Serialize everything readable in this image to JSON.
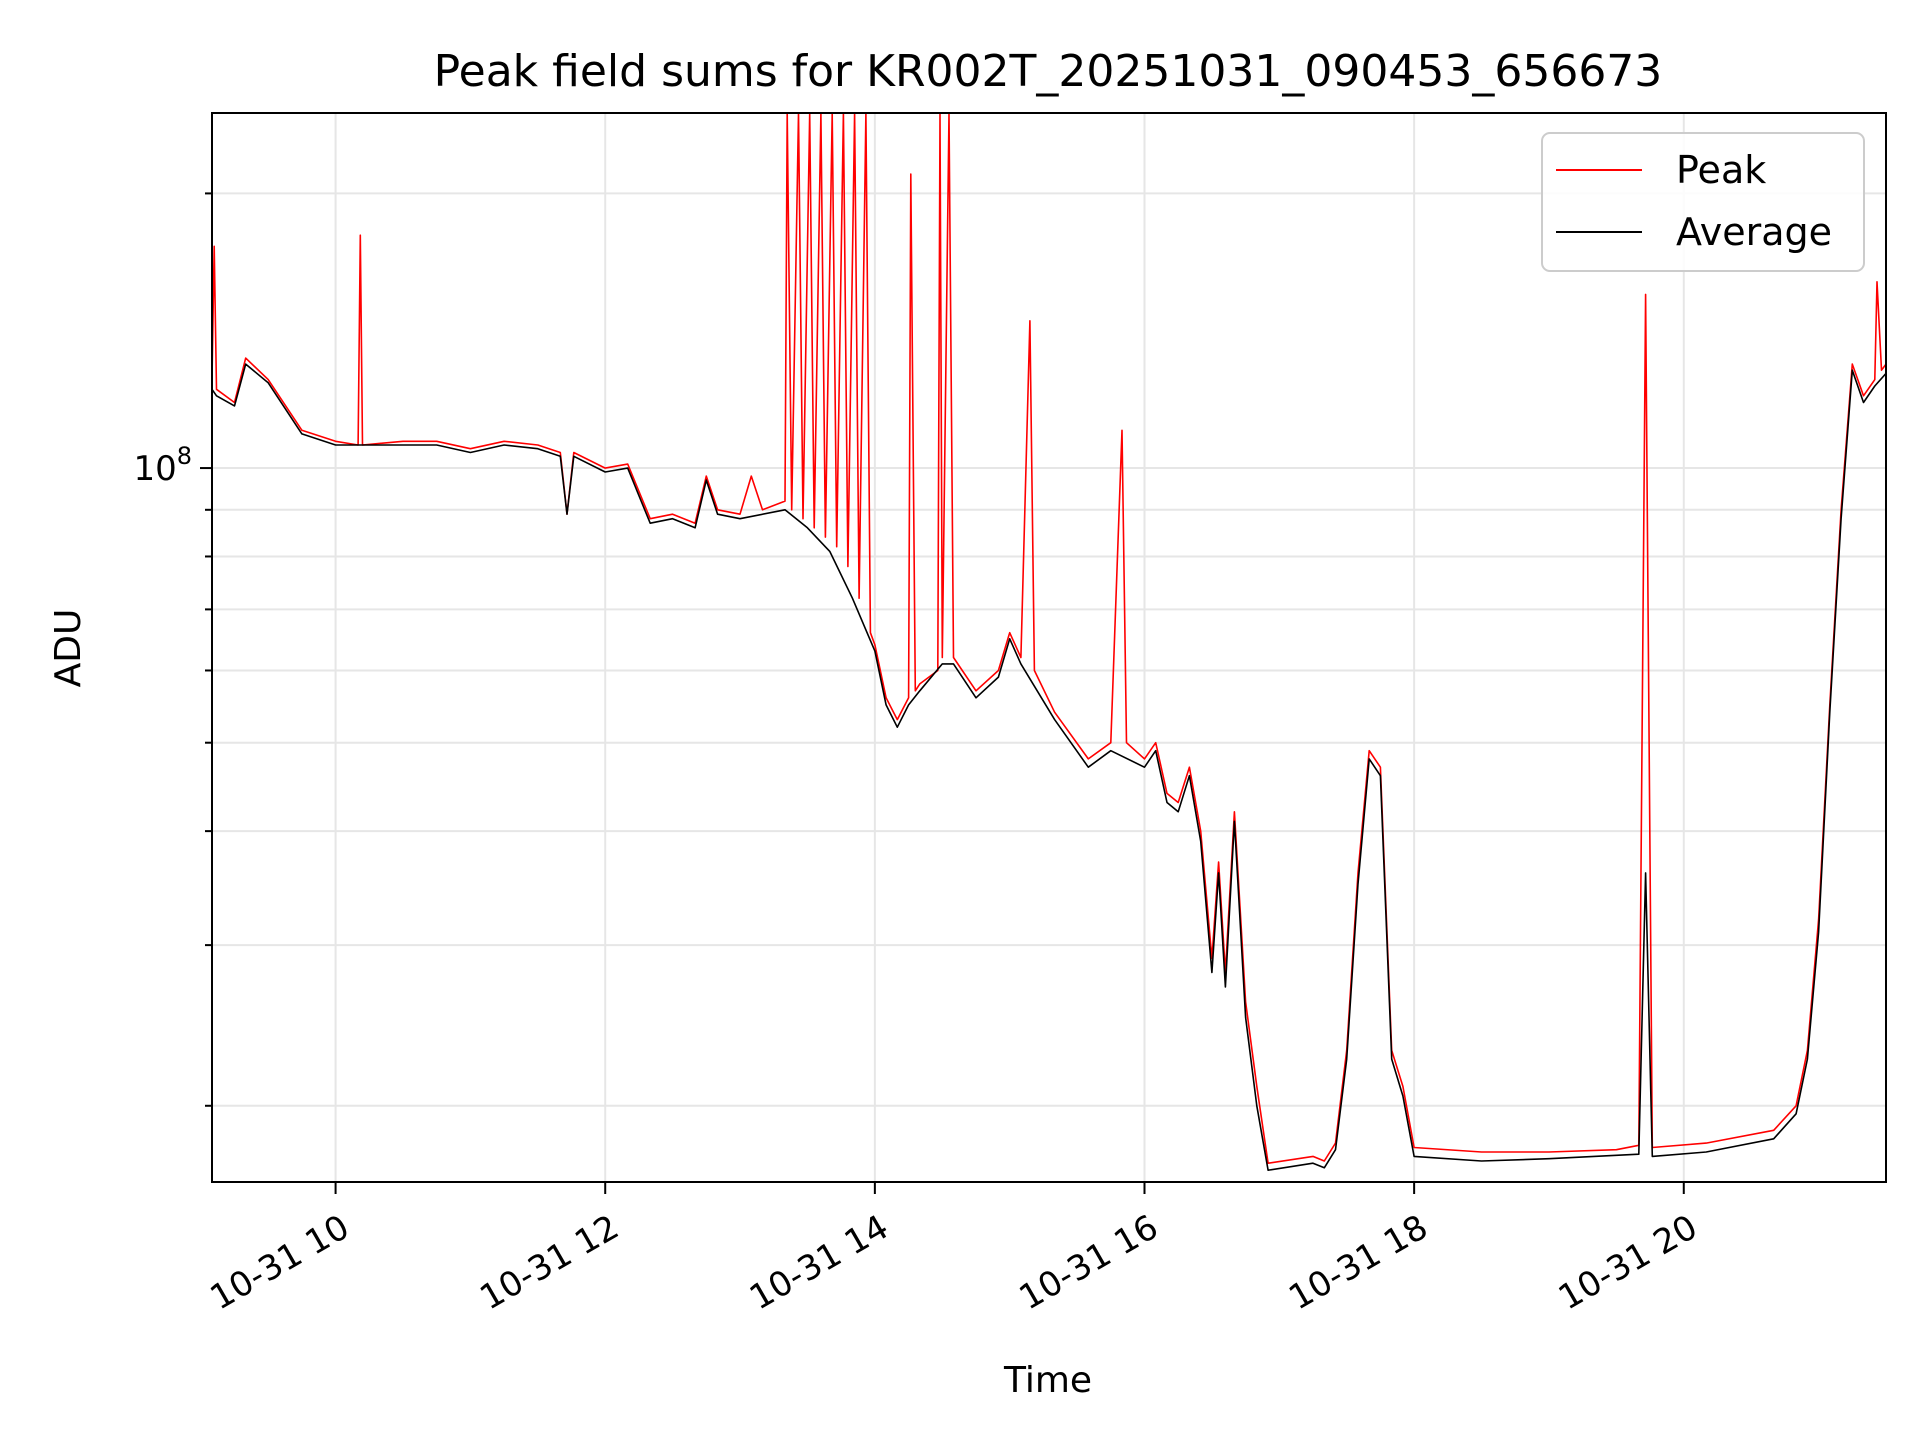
{
  "chart_data": {
    "type": "line",
    "title": "Peak field sums for KR002T_20251031_090453_656673",
    "xlabel": "Time",
    "ylabel": "ADU",
    "x_scale": "time",
    "y_scale": "log",
    "xlim": [
      "2025-10-31 09:05",
      "2025-10-31 21:30"
    ],
    "ylim": [
      16500000,
      245000000
    ],
    "grid": true,
    "legend_position": "upper right",
    "x_ticks": [
      {
        "time": "2025-10-31 10:00",
        "label": "10-31 10"
      },
      {
        "time": "2025-10-31 12:00",
        "label": "10-31 12"
      },
      {
        "time": "2025-10-31 14:00",
        "label": "10-31 14"
      },
      {
        "time": "2025-10-31 16:00",
        "label": "10-31 16"
      },
      {
        "time": "2025-10-31 18:00",
        "label": "10-31 18"
      },
      {
        "time": "2025-10-31 20:00",
        "label": "10-31 20"
      }
    ],
    "y_major_ticks": [
      {
        "value": 100000000,
        "base": "10",
        "exp": "8"
      }
    ],
    "y_minor_ticks": [
      20000000,
      30000000,
      40000000,
      50000000,
      60000000,
      70000000,
      80000000,
      90000000,
      200000000
    ],
    "series": [
      {
        "name": "Peak",
        "color": "#ff0000",
        "points": [
          [
            "2025-10-31 09:05",
            125000000
          ],
          [
            "2025-10-31 09:06",
            175000000
          ],
          [
            "2025-10-31 09:07",
            122000000
          ],
          [
            "2025-10-31 09:15",
            118000000
          ],
          [
            "2025-10-31 09:20",
            132000000
          ],
          [
            "2025-10-31 09:30",
            125000000
          ],
          [
            "2025-10-31 09:45",
            110000000
          ],
          [
            "2025-10-31 10:00",
            107000000
          ],
          [
            "2025-10-31 10:10",
            106000000
          ],
          [
            "2025-10-31 10:11",
            180000000
          ],
          [
            "2025-10-31 10:12",
            106000000
          ],
          [
            "2025-10-31 10:30",
            107000000
          ],
          [
            "2025-10-31 10:45",
            107000000
          ],
          [
            "2025-10-31 11:00",
            105000000
          ],
          [
            "2025-10-31 11:15",
            107000000
          ],
          [
            "2025-10-31 11:30",
            106000000
          ],
          [
            "2025-10-31 11:40",
            104000000
          ],
          [
            "2025-10-31 11:43",
            89000000
          ],
          [
            "2025-10-31 11:46",
            104000000
          ],
          [
            "2025-10-31 12:00",
            100000000
          ],
          [
            "2025-10-31 12:10",
            101000000
          ],
          [
            "2025-10-31 12:20",
            88000000
          ],
          [
            "2025-10-31 12:30",
            89000000
          ],
          [
            "2025-10-31 12:40",
            87000000
          ],
          [
            "2025-10-31 12:45",
            98000000
          ],
          [
            "2025-10-31 12:50",
            90000000
          ],
          [
            "2025-10-31 13:00",
            89000000
          ],
          [
            "2025-10-31 13:05",
            98000000
          ],
          [
            "2025-10-31 13:10",
            90000000
          ],
          [
            "2025-10-31 13:20",
            92000000
          ],
          [
            "2025-10-31 13:21",
            245000000
          ],
          [
            "2025-10-31 13:23",
            90000000
          ],
          [
            "2025-10-31 13:26",
            245000000
          ],
          [
            "2025-10-31 13:28",
            88000000
          ],
          [
            "2025-10-31 13:31",
            245000000
          ],
          [
            "2025-10-31 13:33",
            86000000
          ],
          [
            "2025-10-31 13:36",
            245000000
          ],
          [
            "2025-10-31 13:38",
            84000000
          ],
          [
            "2025-10-31 13:41",
            245000000
          ],
          [
            "2025-10-31 13:43",
            82000000
          ],
          [
            "2025-10-31 13:46",
            245000000
          ],
          [
            "2025-10-31 13:48",
            78000000
          ],
          [
            "2025-10-31 13:51",
            245000000
          ],
          [
            "2025-10-31 13:53",
            72000000
          ],
          [
            "2025-10-31 13:56",
            245000000
          ],
          [
            "2025-10-31 13:58",
            66000000
          ],
          [
            "2025-10-31 14:00",
            64000000
          ],
          [
            "2025-10-31 14:05",
            56000000
          ],
          [
            "2025-10-31 14:10",
            53000000
          ],
          [
            "2025-10-31 14:15",
            56000000
          ],
          [
            "2025-10-31 14:16",
            210000000
          ],
          [
            "2025-10-31 14:18",
            57000000
          ],
          [
            "2025-10-31 14:20",
            58000000
          ],
          [
            "2025-10-31 14:28",
            60000000
          ],
          [
            "2025-10-31 14:29",
            245000000
          ],
          [
            "2025-10-31 14:30",
            62000000
          ],
          [
            "2025-10-31 14:33",
            245000000
          ],
          [
            "2025-10-31 14:35",
            62000000
          ],
          [
            "2025-10-31 14:45",
            57000000
          ],
          [
            "2025-10-31 14:55",
            60000000
          ],
          [
            "2025-10-31 15:00",
            66000000
          ],
          [
            "2025-10-31 15:05",
            62000000
          ],
          [
            "2025-10-31 15:09",
            145000000
          ],
          [
            "2025-10-31 15:11",
            60000000
          ],
          [
            "2025-10-31 15:20",
            54000000
          ],
          [
            "2025-10-31 15:35",
            48000000
          ],
          [
            "2025-10-31 15:45",
            50000000
          ],
          [
            "2025-10-31 15:50",
            110000000
          ],
          [
            "2025-10-31 15:52",
            50000000
          ],
          [
            "2025-10-31 16:00",
            48000000
          ],
          [
            "2025-10-31 16:05",
            50000000
          ],
          [
            "2025-10-31 16:10",
            44000000
          ],
          [
            "2025-10-31 16:15",
            43000000
          ],
          [
            "2025-10-31 16:20",
            47000000
          ],
          [
            "2025-10-31 16:25",
            40000000
          ],
          [
            "2025-10-31 16:30",
            29000000
          ],
          [
            "2025-10-31 16:33",
            37000000
          ],
          [
            "2025-10-31 16:36",
            28000000
          ],
          [
            "2025-10-31 16:40",
            42000000
          ],
          [
            "2025-10-31 16:45",
            26000000
          ],
          [
            "2025-10-31 16:50",
            21000000
          ],
          [
            "2025-10-31 16:55",
            17300000
          ],
          [
            "2025-10-31 17:15",
            17600000
          ],
          [
            "2025-10-31 17:20",
            17400000
          ],
          [
            "2025-10-31 17:25",
            18200000
          ],
          [
            "2025-10-31 17:30",
            23000000
          ],
          [
            "2025-10-31 17:35",
            36000000
          ],
          [
            "2025-10-31 17:40",
            49000000
          ],
          [
            "2025-10-31 17:45",
            47000000
          ],
          [
            "2025-10-31 17:50",
            23000000
          ],
          [
            "2025-10-31 17:55",
            21000000
          ],
          [
            "2025-10-31 18:00",
            18000000
          ],
          [
            "2025-10-31 18:30",
            17800000
          ],
          [
            "2025-10-31 19:00",
            17800000
          ],
          [
            "2025-10-31 19:30",
            17900000
          ],
          [
            "2025-10-31 19:40",
            18100000
          ],
          [
            "2025-10-31 19:43",
            155000000
          ],
          [
            "2025-10-31 19:46",
            18000000
          ],
          [
            "2025-10-31 20:10",
            18200000
          ],
          [
            "2025-10-31 20:40",
            18800000
          ],
          [
            "2025-10-31 20:50",
            20000000
          ],
          [
            "2025-10-31 20:55",
            23000000
          ],
          [
            "2025-10-31 21:00",
            32000000
          ],
          [
            "2025-10-31 21:05",
            55000000
          ],
          [
            "2025-10-31 21:10",
            90000000
          ],
          [
            "2025-10-31 21:15",
            130000000
          ],
          [
            "2025-10-31 21:20",
            120000000
          ],
          [
            "2025-10-31 21:25",
            125000000
          ],
          [
            "2025-10-31 21:26",
            160000000
          ],
          [
            "2025-10-31 21:28",
            128000000
          ],
          [
            "2025-10-31 21:30",
            130000000
          ]
        ]
      },
      {
        "name": "Average",
        "color": "#000000",
        "points": [
          [
            "2025-10-31 09:05",
            122000000
          ],
          [
            "2025-10-31 09:07",
            120000000
          ],
          [
            "2025-10-31 09:15",
            117000000
          ],
          [
            "2025-10-31 09:20",
            130000000
          ],
          [
            "2025-10-31 09:30",
            124000000
          ],
          [
            "2025-10-31 09:45",
            109000000
          ],
          [
            "2025-10-31 10:00",
            106000000
          ],
          [
            "2025-10-31 10:30",
            106000000
          ],
          [
            "2025-10-31 10:45",
            106000000
          ],
          [
            "2025-10-31 11:00",
            104000000
          ],
          [
            "2025-10-31 11:15",
            106000000
          ],
          [
            "2025-10-31 11:30",
            105000000
          ],
          [
            "2025-10-31 11:40",
            103000000
          ],
          [
            "2025-10-31 11:43",
            89000000
          ],
          [
            "2025-10-31 11:46",
            103000000
          ],
          [
            "2025-10-31 12:00",
            99000000
          ],
          [
            "2025-10-31 12:10",
            100000000
          ],
          [
            "2025-10-31 12:20",
            87000000
          ],
          [
            "2025-10-31 12:30",
            88000000
          ],
          [
            "2025-10-31 12:40",
            86000000
          ],
          [
            "2025-10-31 12:45",
            97000000
          ],
          [
            "2025-10-31 12:50",
            89000000
          ],
          [
            "2025-10-31 13:00",
            88000000
          ],
          [
            "2025-10-31 13:20",
            90000000
          ],
          [
            "2025-10-31 13:30",
            86000000
          ],
          [
            "2025-10-31 13:40",
            81000000
          ],
          [
            "2025-10-31 13:50",
            72000000
          ],
          [
            "2025-10-31 14:00",
            63000000
          ],
          [
            "2025-10-31 14:05",
            55000000
          ],
          [
            "2025-10-31 14:10",
            52000000
          ],
          [
            "2025-10-31 14:15",
            55000000
          ],
          [
            "2025-10-31 14:20",
            57000000
          ],
          [
            "2025-10-31 14:30",
            61000000
          ],
          [
            "2025-10-31 14:35",
            61000000
          ],
          [
            "2025-10-31 14:45",
            56000000
          ],
          [
            "2025-10-31 14:55",
            59000000
          ],
          [
            "2025-10-31 15:00",
            65000000
          ],
          [
            "2025-10-31 15:05",
            61000000
          ],
          [
            "2025-10-31 15:20",
            53000000
          ],
          [
            "2025-10-31 15:35",
            47000000
          ],
          [
            "2025-10-31 15:45",
            49000000
          ],
          [
            "2025-10-31 16:00",
            47000000
          ],
          [
            "2025-10-31 16:05",
            49000000
          ],
          [
            "2025-10-31 16:10",
            43000000
          ],
          [
            "2025-10-31 16:15",
            42000000
          ],
          [
            "2025-10-31 16:20",
            46000000
          ],
          [
            "2025-10-31 16:25",
            39000000
          ],
          [
            "2025-10-31 16:30",
            28000000
          ],
          [
            "2025-10-31 16:33",
            36000000
          ],
          [
            "2025-10-31 16:36",
            27000000
          ],
          [
            "2025-10-31 16:40",
            41000000
          ],
          [
            "2025-10-31 16:45",
            25000000
          ],
          [
            "2025-10-31 16:50",
            20000000
          ],
          [
            "2025-10-31 16:55",
            17000000
          ],
          [
            "2025-10-31 17:15",
            17300000
          ],
          [
            "2025-10-31 17:20",
            17100000
          ],
          [
            "2025-10-31 17:25",
            17900000
          ],
          [
            "2025-10-31 17:30",
            22500000
          ],
          [
            "2025-10-31 17:35",
            35000000
          ],
          [
            "2025-10-31 17:40",
            48000000
          ],
          [
            "2025-10-31 17:45",
            46000000
          ],
          [
            "2025-10-31 17:50",
            22500000
          ],
          [
            "2025-10-31 17:55",
            20500000
          ],
          [
            "2025-10-31 18:00",
            17600000
          ],
          [
            "2025-10-31 18:30",
            17400000
          ],
          [
            "2025-10-31 19:00",
            17500000
          ],
          [
            "2025-10-31 19:40",
            17700000
          ],
          [
            "2025-10-31 19:43",
            36000000
          ],
          [
            "2025-10-31 19:46",
            17600000
          ],
          [
            "2025-10-31 20:10",
            17800000
          ],
          [
            "2025-10-31 20:40",
            18400000
          ],
          [
            "2025-10-31 20:50",
            19600000
          ],
          [
            "2025-10-31 20:55",
            22500000
          ],
          [
            "2025-10-31 21:00",
            31000000
          ],
          [
            "2025-10-31 21:05",
            54000000
          ],
          [
            "2025-10-31 21:10",
            88000000
          ],
          [
            "2025-10-31 21:15",
            128000000
          ],
          [
            "2025-10-31 21:20",
            118000000
          ],
          [
            "2025-10-31 21:25",
            123000000
          ],
          [
            "2025-10-31 21:30",
            127000000
          ]
        ]
      }
    ]
  }
}
